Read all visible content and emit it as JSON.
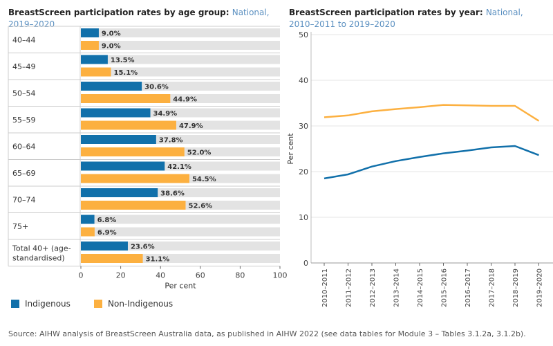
{
  "colors": {
    "indigenous": "#1170aa",
    "non_indigenous": "#fcb040",
    "track": "#e3e3e3",
    "grid": "#e6e6e6",
    "axis": "#666666"
  },
  "legend": {
    "indigenous": "Indigenous",
    "non_indigenous": "Non-Indigenous"
  },
  "source": "Source: AIHW analysis of BreastScreen Australia data, as published in AIHW 2022 (see data tables for Module 3 – Tables 3.1.2a, 3.1.2b).",
  "chart_data": [
    {
      "type": "bar",
      "orientation": "horizontal",
      "title": "BreastScreen participation rates by age group:",
      "subtitle": "National, 2019–2020",
      "xlabel": "Per cent",
      "xlim": [
        0,
        100
      ],
      "xticks": [
        0,
        20,
        40,
        60,
        80,
        100
      ],
      "categories": [
        "40–44",
        "45–49",
        "50–54",
        "55–59",
        "60–64",
        "65–69",
        "70–74",
        "75+",
        "Total 40+ (age-standardised)"
      ],
      "category_lines": [
        [
          "40–44"
        ],
        [
          "45–49"
        ],
        [
          "50–54"
        ],
        [
          "55–59"
        ],
        [
          "60–64"
        ],
        [
          "65–69"
        ],
        [
          "70–74"
        ],
        [
          "75+"
        ],
        [
          "Total 40+ (age-",
          "standardised)"
        ]
      ],
      "series": [
        {
          "name": "Indigenous",
          "values": [
            9.0,
            13.5,
            30.6,
            34.9,
            37.8,
            42.1,
            38.6,
            6.8,
            23.6
          ],
          "labels": [
            "9.0%",
            "13.5%",
            "30.6%",
            "34.9%",
            "37.8%",
            "42.1%",
            "38.6%",
            "6.8%",
            "23.6%"
          ]
        },
        {
          "name": "Non-Indigenous",
          "values": [
            9.0,
            15.1,
            44.9,
            47.9,
            52.0,
            54.5,
            52.6,
            6.9,
            31.1
          ],
          "labels": [
            "9.0%",
            "15.1%",
            "44.9%",
            "47.9%",
            "52.0%",
            "54.5%",
            "52.6%",
            "6.9%",
            "31.1%"
          ]
        }
      ]
    },
    {
      "type": "line",
      "title": "BreastScreen participation rates by year:",
      "subtitle": "National, 2010–2011 to 2019–2020",
      "ylabel": "Per cent",
      "ylim": [
        0,
        50
      ],
      "yticks": [
        0,
        10,
        20,
        30,
        40,
        50
      ],
      "x": [
        "2010–2011",
        "2011–2012",
        "2012–2013",
        "2013–2014",
        "2014–2015",
        "2015–2016",
        "2016–2017",
        "2017–2018",
        "2018–2019",
        "2019–2020"
      ],
      "series": [
        {
          "name": "Non-Indigenous",
          "values": [
            31.9,
            32.3,
            33.2,
            33.7,
            34.1,
            34.6,
            34.5,
            34.4,
            34.4,
            31.1
          ]
        },
        {
          "name": "Indigenous",
          "values": [
            18.5,
            19.4,
            21.1,
            22.3,
            23.2,
            24.0,
            24.6,
            25.3,
            25.6,
            23.6
          ]
        }
      ]
    }
  ]
}
